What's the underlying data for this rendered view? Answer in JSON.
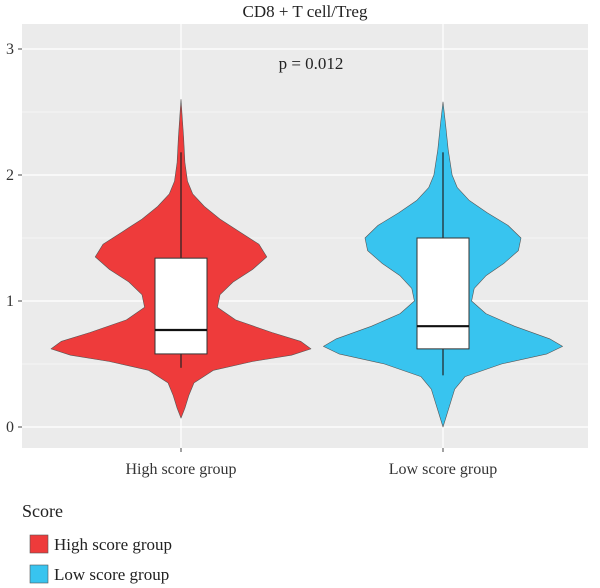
{
  "chart_data": {
    "type": "violin",
    "title": "CD8 + T cell/Treg",
    "annotation": "p = 0.012",
    "xlabel": "",
    "ylabel": "",
    "ylim": [
      -0.05,
      3.1
    ],
    "yticks": [
      0,
      1,
      2,
      3
    ],
    "categories": [
      "High score group",
      "Low score group"
    ],
    "series": [
      {
        "name": "High score group",
        "color": "#ee3b3b",
        "box": {
          "whisker_low": 0.47,
          "q1": 0.58,
          "median": 0.77,
          "q3": 1.34,
          "whisker_high": 2.18
        },
        "density": [
          [
            0.07,
            0.0
          ],
          [
            0.15,
            0.03
          ],
          [
            0.25,
            0.06
          ],
          [
            0.35,
            0.1
          ],
          [
            0.45,
            0.25
          ],
          [
            0.52,
            0.55
          ],
          [
            0.57,
            0.85
          ],
          [
            0.62,
            1.0
          ],
          [
            0.68,
            0.92
          ],
          [
            0.75,
            0.7
          ],
          [
            0.85,
            0.42
          ],
          [
            0.95,
            0.28
          ],
          [
            1.05,
            0.3
          ],
          [
            1.15,
            0.4
          ],
          [
            1.25,
            0.55
          ],
          [
            1.35,
            0.66
          ],
          [
            1.45,
            0.6
          ],
          [
            1.55,
            0.45
          ],
          [
            1.65,
            0.3
          ],
          [
            1.75,
            0.18
          ],
          [
            1.85,
            0.09
          ],
          [
            1.95,
            0.05
          ],
          [
            2.1,
            0.03
          ],
          [
            2.3,
            0.02
          ],
          [
            2.45,
            0.01
          ],
          [
            2.6,
            0.0
          ]
        ]
      },
      {
        "name": "Low score group",
        "color": "#38c4ef",
        "box": {
          "whisker_low": 0.41,
          "q1": 0.62,
          "median": 0.8,
          "q3": 1.5,
          "whisker_high": 2.18
        },
        "density": [
          [
            0.0,
            0.0
          ],
          [
            0.1,
            0.03
          ],
          [
            0.2,
            0.06
          ],
          [
            0.3,
            0.09
          ],
          [
            0.4,
            0.17
          ],
          [
            0.5,
            0.45
          ],
          [
            0.58,
            0.8
          ],
          [
            0.64,
            0.92
          ],
          [
            0.7,
            0.82
          ],
          [
            0.8,
            0.55
          ],
          [
            0.9,
            0.33
          ],
          [
            1.0,
            0.22
          ],
          [
            1.1,
            0.24
          ],
          [
            1.2,
            0.33
          ],
          [
            1.3,
            0.47
          ],
          [
            1.4,
            0.58
          ],
          [
            1.5,
            0.6
          ],
          [
            1.6,
            0.5
          ],
          [
            1.7,
            0.34
          ],
          [
            1.8,
            0.2
          ],
          [
            1.9,
            0.11
          ],
          [
            2.0,
            0.07
          ],
          [
            2.2,
            0.04
          ],
          [
            2.4,
            0.02
          ],
          [
            2.58,
            0.0
          ]
        ]
      }
    ],
    "legend": {
      "title": "Score",
      "position": "bottom-left"
    },
    "grid": true
  }
}
